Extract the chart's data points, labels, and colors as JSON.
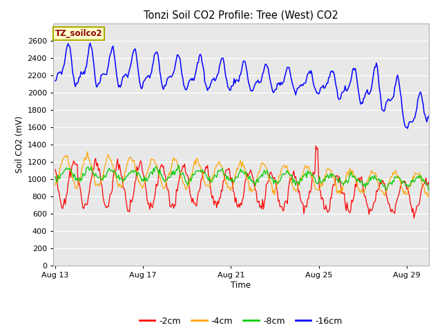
{
  "title": "Tonzi Soil CO2 Profile: Tree (West) CO2",
  "xlabel": "Time",
  "ylabel": "Soil CO2 (mV)",
  "ylim": [
    0,
    2800
  ],
  "yticks": [
    0,
    200,
    400,
    600,
    800,
    1000,
    1200,
    1400,
    1600,
    1800,
    2000,
    2200,
    2400,
    2600
  ],
  "fig_bg_color": "#ffffff",
  "plot_bg_color": "#e8e8e8",
  "legend_label": "TZ_soilco2",
  "series_labels": [
    "-2cm",
    "-4cm",
    "-8cm",
    "-16cm"
  ],
  "series_colors": [
    "#ff0000",
    "#ffa500",
    "#00cc00",
    "#0000ff"
  ],
  "xtick_positions": [
    13,
    17,
    21,
    25,
    29
  ],
  "xtick_labels": [
    "Aug 13",
    "Aug 17",
    "Aug 21",
    "Aug 25",
    "Aug 29"
  ],
  "xstart": 13,
  "xend": 31
}
